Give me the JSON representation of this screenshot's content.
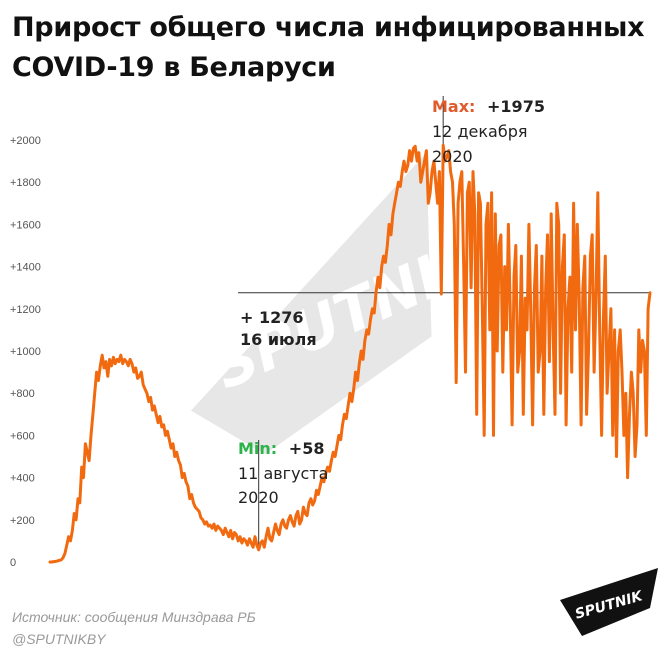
{
  "title_line1": "Прирост общего числа инфицированных",
  "title_line2": "COVID-19 в Беларуси",
  "source": "Источник: сообщения Минздрава РБ",
  "handle": "@SPUTNIKBY",
  "logo_text": "SPUTNIK",
  "watermark_text": "SPUTNIK",
  "colors": {
    "line": "#f26a10",
    "max_label": "#e05a2b",
    "min_label": "#2db34a",
    "text": "#222222"
  },
  "chart_data": {
    "type": "line",
    "title": "Прирост общего числа инфицированных COVID-19 в Беларуси",
    "xlabel": "",
    "ylabel": "",
    "ylim": [
      0,
      2000
    ],
    "y_ticks": [
      "0",
      "+200",
      "+400",
      "+600",
      "+800",
      "+1000",
      "+1200",
      "+1400",
      "+1600",
      "+1800",
      "+2000"
    ],
    "grid": false,
    "series": [
      {
        "name": "",
        "values": [
          0,
          0,
          2,
          3,
          5,
          8,
          10,
          20,
          40,
          80,
          120,
          100,
          150,
          230,
          200,
          300,
          280,
          450,
          400,
          560,
          520,
          480,
          600,
          700,
          800,
          900,
          860,
          930,
          980,
          920,
          950,
          880,
          960,
          930,
          970,
          940,
          960,
          950,
          980,
          940,
          960,
          950,
          930,
          960,
          940,
          900,
          920,
          870,
          880,
          900,
          840,
          820,
          800,
          760,
          780,
          720,
          740,
          700,
          660,
          690,
          640,
          650,
          600,
          620,
          580,
          540,
          560,
          500,
          520,
          480,
          460,
          400,
          420,
          380,
          360,
          300,
          320,
          280,
          260,
          250,
          240,
          210,
          200,
          180,
          190,
          170,
          175,
          160,
          180,
          150,
          170,
          160,
          150,
          130,
          160,
          140,
          120,
          150,
          110,
          140,
          130,
          100,
          120,
          90,
          110,
          100,
          80,
          110,
          90,
          70,
          120,
          80,
          58,
          90,
          100,
          70,
          120,
          160,
          110,
          100,
          140,
          180,
          150,
          130,
          180,
          200,
          170,
          160,
          200,
          220,
          190,
          170,
          220,
          240,
          180,
          200,
          260,
          230,
          220,
          280,
          300,
          270,
          290,
          340,
          320,
          360,
          400,
          380,
          420,
          450,
          430,
          480,
          520,
          500,
          550,
          600,
          580,
          650,
          700,
          680,
          740,
          800,
          760,
          820,
          900,
          860,
          940,
          1000,
          960,
          1050,
          1100,
          1080,
          1150,
          1200,
          1180,
          1280,
          1350,
          1300,
          1400,
          1450,
          1420,
          1500,
          1600,
          1550,
          1650,
          1700,
          1750,
          1800,
          1780,
          1850,
          1900,
          1850,
          1880,
          1950,
          1900,
          1960,
          1970,
          1900,
          1940,
          1800,
          1850,
          1900,
          1950,
          1700,
          1750,
          1850,
          1900,
          1800,
          1700,
          1850,
          1270,
          1975,
          1900,
          1920,
          1950,
          1850,
          1800,
          1600,
          850,
          1700,
          1800,
          1850,
          1400,
          900,
          1750,
          1800,
          1300,
          1850,
          1650,
          700,
          1750,
          1700,
          1200,
          600,
          1600,
          1700,
          1100,
          1750,
          600,
          1650,
          1000,
          1500,
          1550,
          900,
          1400,
          1100,
          1600,
          1200,
          650,
          1350,
          1500,
          900,
          1000,
          1450,
          700,
          1250,
          1100,
          1600,
          1200,
          650,
          1300,
          1500,
          900,
          1000,
          1450,
          700,
          1300,
          1550,
          950,
          1650,
          1100,
          700,
          1700,
          1600,
          800,
          1400,
          1550,
          650,
          1200,
          1350,
          900,
          1700,
          1100,
          1600,
          1250,
          650,
          1300,
          1450,
          700,
          1000,
          1450,
          1550,
          900,
          1250,
          1750,
          1100,
          600,
          1150,
          1450,
          800,
          1000,
          1200,
          600,
          1100,
          500,
          1000,
          1100,
          900,
          600,
          800,
          400,
          700,
          900,
          800,
          500,
          650,
          1100,
          900,
          1050,
          1000,
          600,
          1200,
          1276
        ]
      }
    ],
    "annotations": [
      {
        "type": "max",
        "label": "Max:",
        "value": "+1975",
        "date_line1": "12 декабря",
        "date_line2": "2020"
      },
      {
        "type": "min",
        "label": "Min:",
        "value": "+58",
        "date_line1": "11 августа",
        "date_line2": "2020"
      },
      {
        "type": "last",
        "value": "+ 1276",
        "date": "16 июля"
      }
    ]
  }
}
